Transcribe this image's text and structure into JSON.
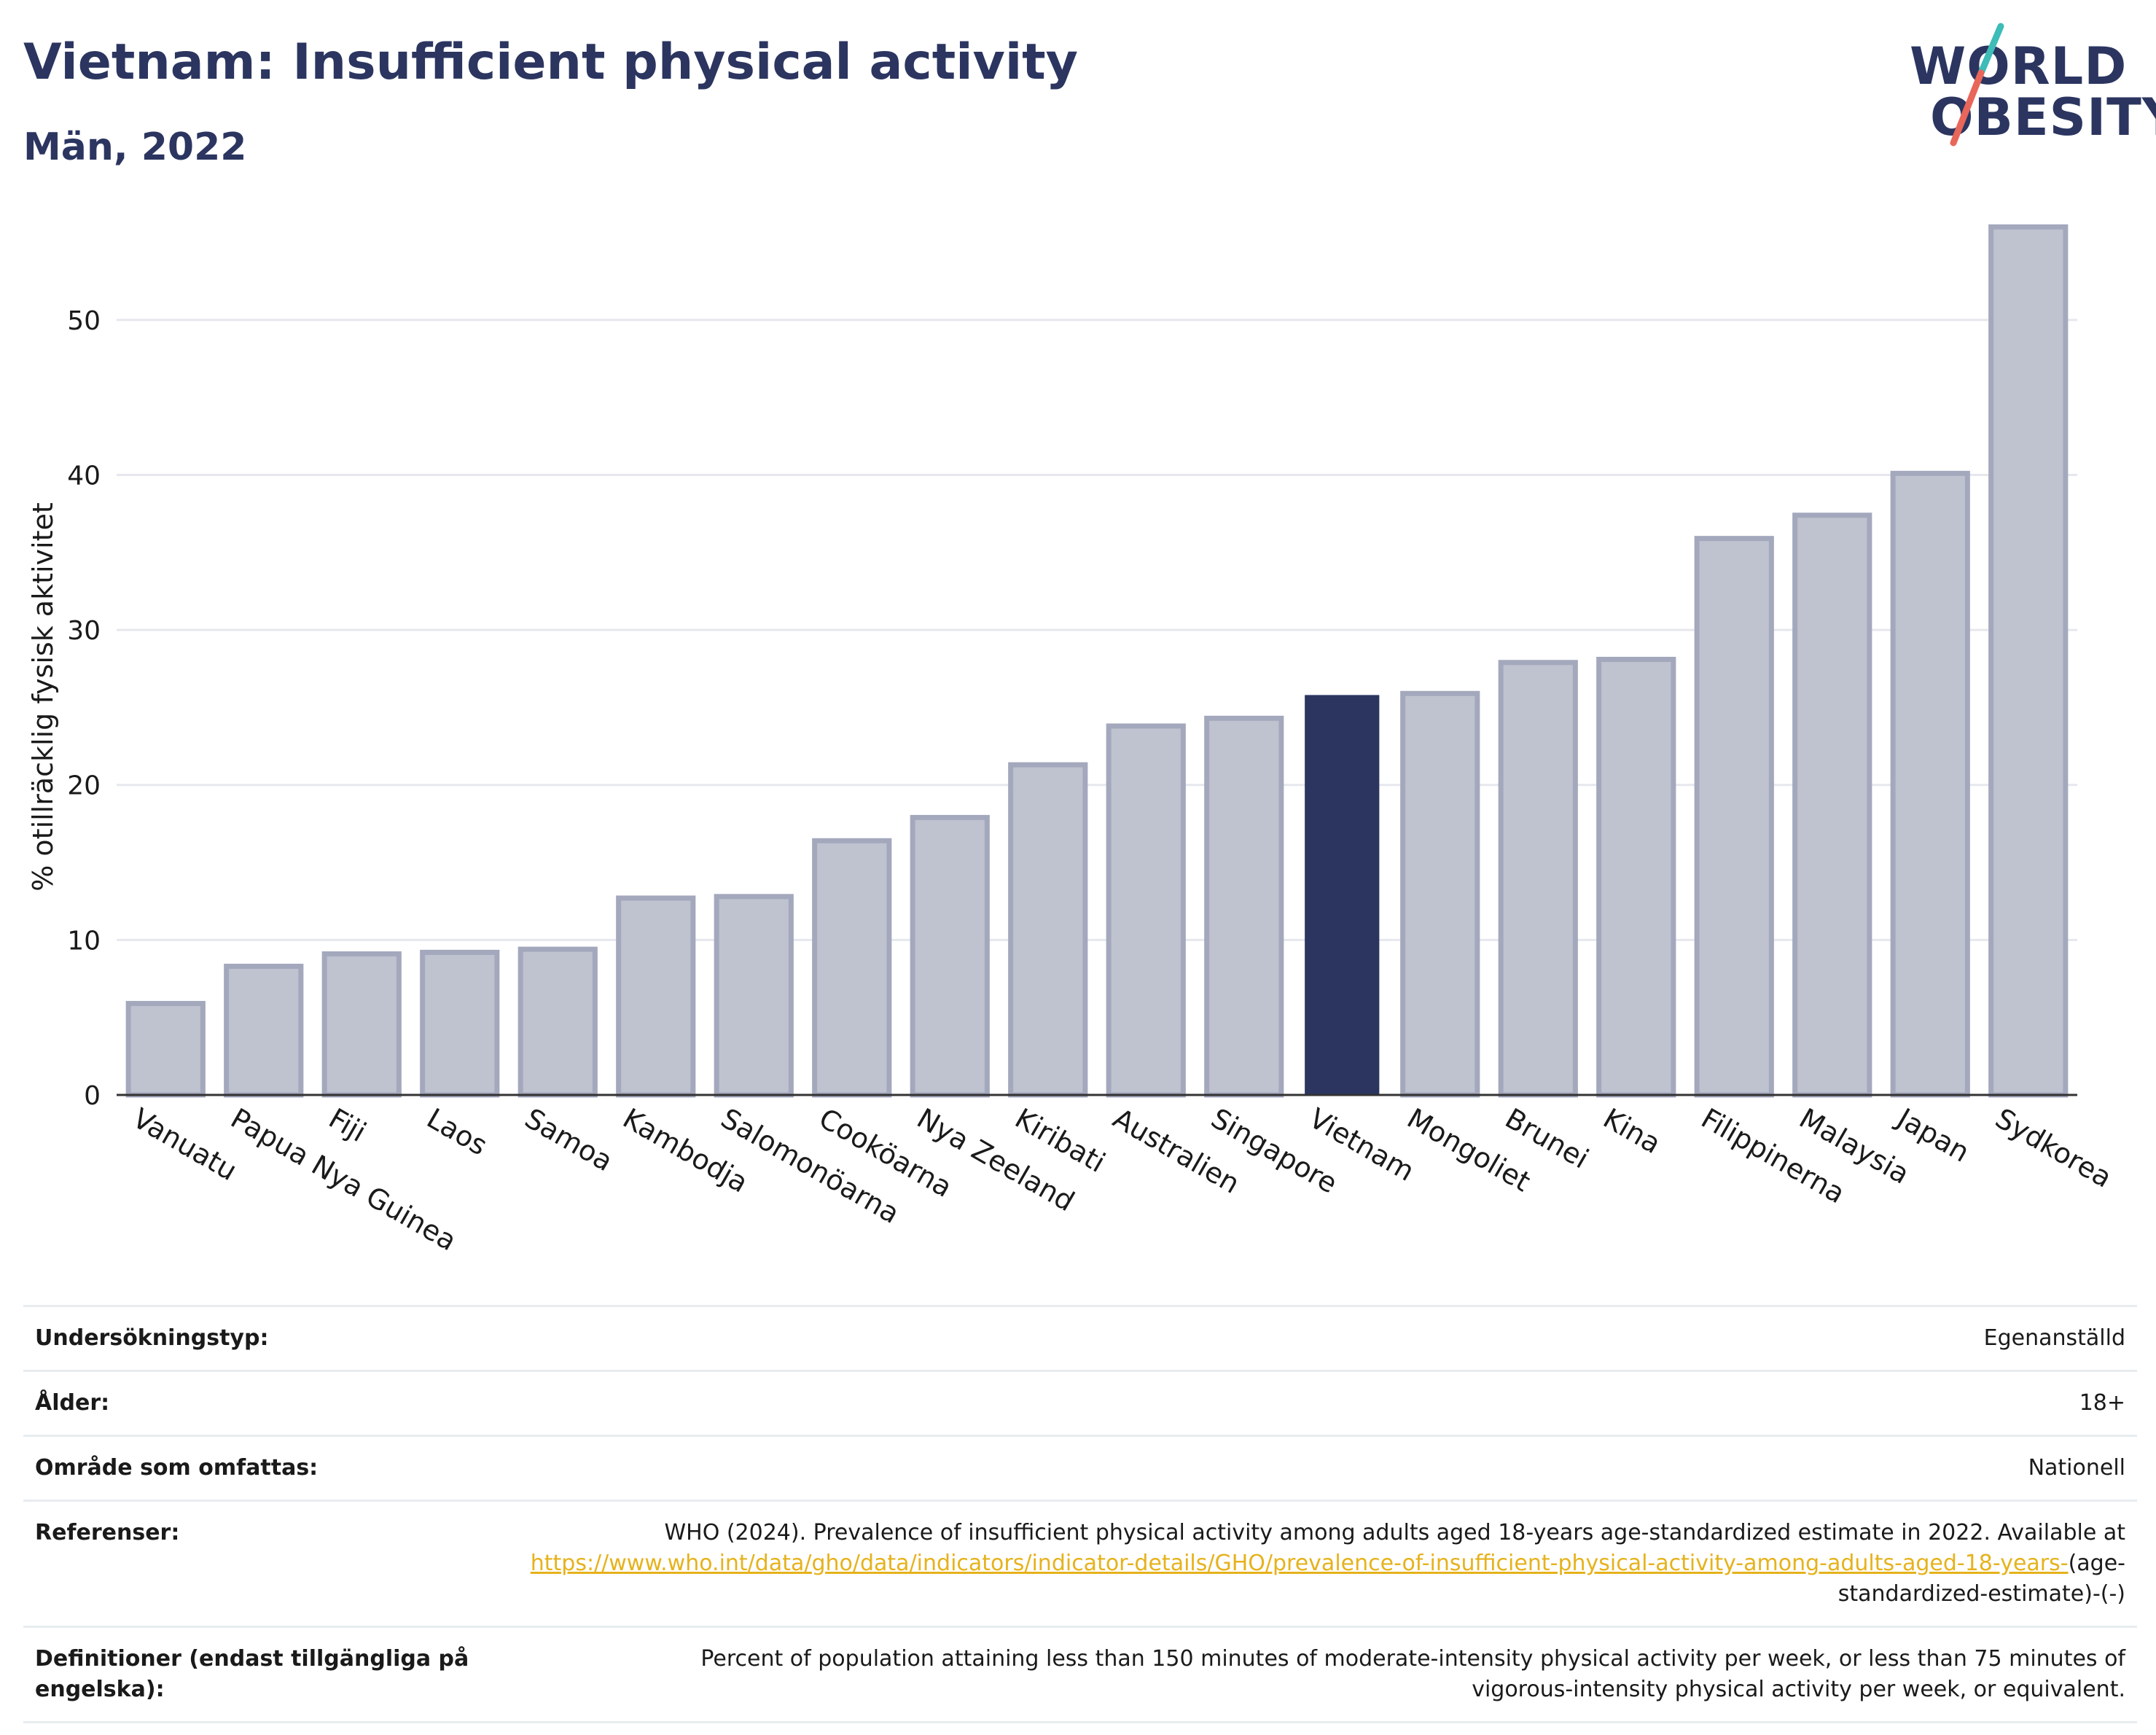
{
  "header": {
    "title": "Vietnam: Insufficient physical activity",
    "subtitle": "Män, 2022"
  },
  "logo": {
    "line1": "WORLD",
    "line2": "OBESITY",
    "accent_teal": "#3dbcb8",
    "accent_red": "#e8665a"
  },
  "colors": {
    "bar_default": "#bfc2cf",
    "bar_border": "#a4a8bd",
    "bar_highlight": "#2b3560",
    "text": "#2b3560"
  },
  "chart_data": {
    "type": "bar",
    "title": "Vietnam: Insufficient physical activity",
    "subtitle": "Män, 2022",
    "xlabel": "",
    "ylabel": "% otillräcklig fysisk aktivitet",
    "ylim": [
      0,
      57
    ],
    "yticks": [
      0,
      10,
      20,
      30,
      40,
      50
    ],
    "grid": true,
    "highlight": "Vietnam",
    "categories": [
      "Vanuatu",
      "Papua Nya Guinea",
      "Fiji",
      "Laos",
      "Samoa",
      "Kambodja",
      "Salomonöarna",
      "Cooköarna",
      "Nya Zeeland",
      "Kiribati",
      "Australien",
      "Singapore",
      "Vietnam",
      "Mongoliet",
      "Brunei",
      "Kina",
      "Filippinerna",
      "Malaysia",
      "Japan",
      "Sydkorea"
    ],
    "values": [
      5.9,
      8.3,
      9.1,
      9.2,
      9.4,
      12.7,
      12.8,
      16.4,
      17.9,
      21.3,
      23.8,
      24.3,
      25.8,
      25.9,
      27.9,
      28.1,
      35.9,
      37.4,
      40.1,
      56.0
    ]
  },
  "meta": {
    "rows": [
      {
        "label": "Undersökningstyp:",
        "value": "Egenanställd"
      },
      {
        "label": "Ålder:",
        "value": "18+"
      },
      {
        "label": "Område som omfattas:",
        "value": "Nationell"
      }
    ],
    "references": {
      "label": "Referenser:",
      "text": "WHO (2024). Prevalence of insufficient physical activity among adults aged 18-years age-standardized estimate in 2022. Available at",
      "link": "https://www.who.int/data/gho/data/indicators/indicator-details/GHO/prevalence-of-insufficient-physical-activity-among-adults-aged-18-years-",
      "suffix": "(age-standardized-estimate)-(-)"
    },
    "definitions": {
      "label": "Definitioner (endast tillgängliga på engelska):",
      "value": "Percent of population attaining less than 150 minutes of moderate-intensity physical activity per week, or less than 75 minutes of vigorous-intensity physical activity per week, or equivalent."
    }
  }
}
